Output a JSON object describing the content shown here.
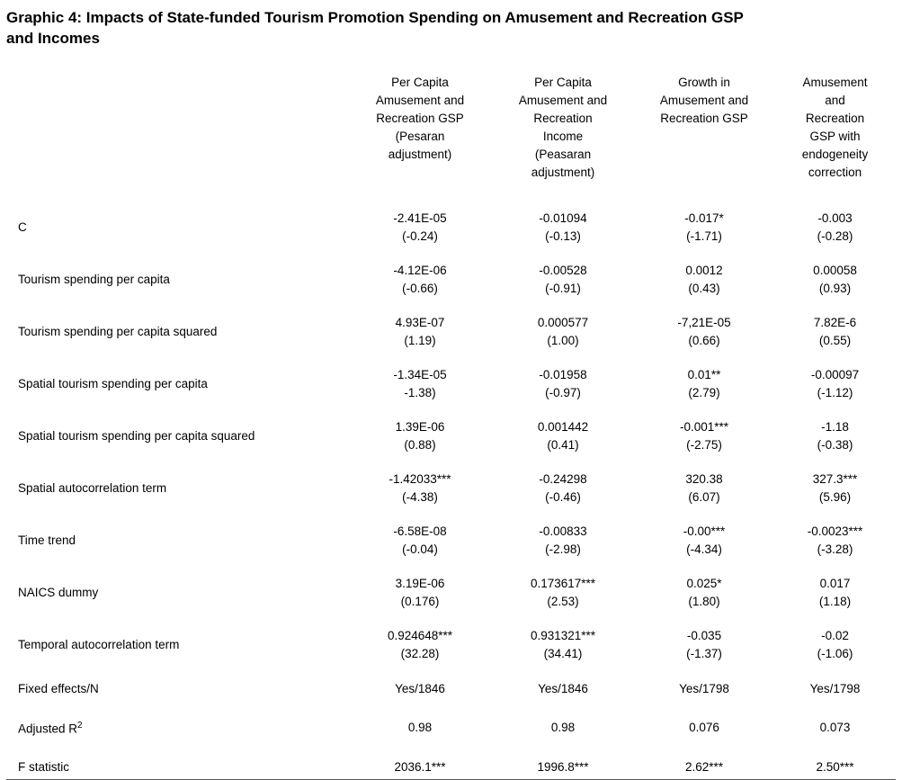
{
  "title": "Graphic 4: Impacts of State-funded Tourism Promotion Spending on Amusement and Recreation GSP\nand Incomes",
  "table": {
    "columns": [
      "Per Capita\nAmusement and\nRecreation GSP\n(Pesaran\nadjustment)",
      "Per Capita\nAmusement and\nRecreation\nIncome\n(Peasaran\nadjustment)",
      "Growth in\nAmusement and\nRecreation GSP",
      "Amusement\nand\nRecreation\nGSP with\nendogeneity\ncorrection"
    ],
    "rows": [
      {
        "label": "C",
        "values": [
          "-2.41E-05",
          "-0.01094",
          "-0.017*",
          "-0.003"
        ],
        "tstats": [
          "(-0.24)",
          "(-0.13)",
          "(-1.71)",
          "(-0.28)"
        ]
      },
      {
        "label": "Tourism spending per capita",
        "values": [
          "-4.12E-06",
          "-0.00528",
          "0.0012",
          "0.00058"
        ],
        "tstats": [
          "(-0.66)",
          "(-0.91)",
          "(0.43)",
          "(0.93)"
        ]
      },
      {
        "label": "Tourism spending per capita squared",
        "values": [
          "4.93E-07",
          "0.000577",
          "-7,21E-05",
          "7.82E-6"
        ],
        "tstats": [
          "(1.19)",
          "(1.00)",
          "(0.66)",
          "(0.55)"
        ]
      },
      {
        "label": "Spatial tourism spending per capita",
        "values": [
          "-1.34E-05",
          "-0.01958",
          "0.01**",
          "-0.00097"
        ],
        "tstats": [
          "-1.38)",
          "(-0.97)",
          "(2.79)",
          "(-1.12)"
        ]
      },
      {
        "label": "Spatial tourism spending per capita squared",
        "values": [
          "1.39E-06",
          "0.001442",
          "-0.001***",
          "-1.18"
        ],
        "tstats": [
          "(0.88)",
          "(0.41)",
          "(-2.75)",
          "(-0.38)"
        ]
      },
      {
        "label": "Spatial autocorrelation term",
        "values": [
          "-1.42033***",
          "-0.24298",
          "320.38",
          "327.3***"
        ],
        "tstats": [
          "(-4.38)",
          "(-0.46)",
          "(6.07)",
          "(5.96)"
        ]
      },
      {
        "label": "Time trend",
        "values": [
          "-6.58E-08",
          "-0.00833",
          "-0.00***",
          "-0.0023***"
        ],
        "tstats": [
          "(-0.04)",
          "(-2.98)",
          "(-4.34)",
          "(-3.28)"
        ]
      },
      {
        "label": "NAICS dummy",
        "values": [
          "3.19E-06",
          "0.173617***",
          "0.025*",
          "0.017"
        ],
        "tstats": [
          "(0.176)",
          "(2.53)",
          "(1.80)",
          "(1.18)"
        ]
      },
      {
        "label": "Temporal autocorrelation term",
        "values": [
          "0.924648***",
          "0.931321***",
          "-0.035",
          "-0.02"
        ],
        "tstats": [
          "(32.28)",
          "(34.41)",
          "(-1.37)",
          "(-1.06)"
        ]
      },
      {
        "label": "Fixed effects/N",
        "values": [
          "Yes/1846",
          "Yes/1846",
          "Yes/1798",
          "Yes/1798"
        ]
      },
      {
        "label": "Adjusted R",
        "label_sup": "2",
        "values": [
          "0.98",
          "0.98",
          "0.076",
          "0.073"
        ]
      },
      {
        "label": "F statistic",
        "values": [
          "2036.1***",
          "1996.8***",
          "2.62***",
          "2.50***"
        ],
        "last": true
      }
    ]
  }
}
